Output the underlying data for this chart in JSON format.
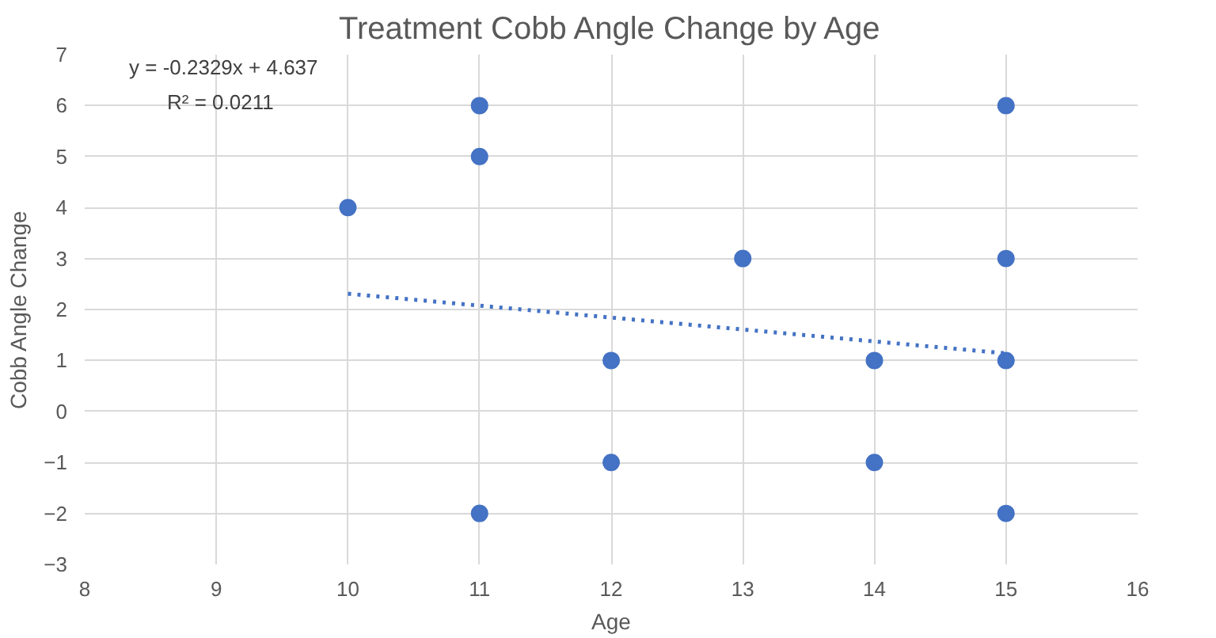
{
  "chart_data": {
    "type": "scatter",
    "title": "Treatment Cobb Angle Change by Age",
    "xlabel": "Age",
    "ylabel": "Cobb Angle Change",
    "xlim": [
      8,
      16
    ],
    "xticks": [
      8,
      9,
      10,
      11,
      12,
      13,
      14,
      15,
      16
    ],
    "ylim": [
      -3,
      7
    ],
    "yticks": [
      -3,
      -2,
      -1,
      0,
      1,
      2,
      3,
      4,
      5,
      6,
      7
    ],
    "grid": true,
    "marker": "circle",
    "series": [
      {
        "color": "#4472c4",
        "x": [
          10,
          11,
          11,
          11,
          12,
          12,
          13,
          14,
          14,
          15,
          15,
          15,
          15
        ],
        "values": [
          4,
          6,
          5,
          -2,
          1,
          -1,
          3,
          1,
          -1,
          6,
          3,
          1,
          -2
        ]
      },
      {
        "type": "line",
        "color": "#4472c4",
        "line_style": "dotted",
        "marker": "none",
        "x": [
          10,
          15
        ],
        "values": [
          2.31,
          1.14
        ]
      }
    ],
    "annotations": [
      "y = -0.2329x + 4.637",
      "R² = 0.0211"
    ]
  }
}
